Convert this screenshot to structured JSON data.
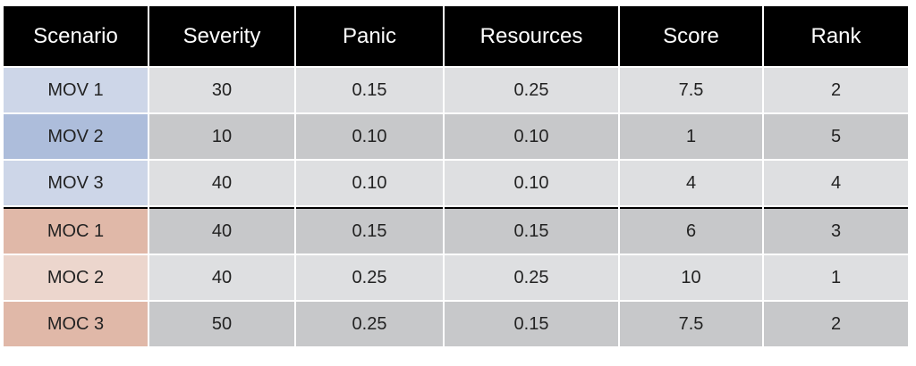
{
  "chart_data": {
    "type": "table",
    "columns": [
      "Scenario",
      "Severity",
      "Panic",
      "Resources",
      "Score",
      "Rank"
    ],
    "rows": [
      {
        "scenario": "MOV 1",
        "severity": "30",
        "panic": "0.15",
        "resources": "0.25",
        "score": "7.5",
        "rank": "2",
        "color": "#cdd6e8",
        "stripe": "light",
        "group_start": false
      },
      {
        "scenario": "MOV 2",
        "severity": "10",
        "panic": "0.10",
        "resources": "0.10",
        "score": "1",
        "rank": "5",
        "color": "#adbddb",
        "stripe": "dark",
        "group_start": false
      },
      {
        "scenario": "MOV 3",
        "severity": "40",
        "panic": "0.10",
        "resources": "0.10",
        "score": "4",
        "rank": "4",
        "color": "#cdd6e8",
        "stripe": "light",
        "group_start": false
      },
      {
        "scenario": "MOC 1",
        "severity": "40",
        "panic": "0.15",
        "resources": "0.15",
        "score": "6",
        "rank": "3",
        "color": "#e0b8a8",
        "stripe": "dark",
        "group_start": true
      },
      {
        "scenario": "MOC 2",
        "severity": "40",
        "panic": "0.25",
        "resources": "0.25",
        "score": "10",
        "rank": "1",
        "color": "#ecd6cd",
        "stripe": "light",
        "group_start": false
      },
      {
        "scenario": "MOC 3",
        "severity": "50",
        "panic": "0.25",
        "resources": "0.15",
        "score": "7.5",
        "rank": "2",
        "color": "#e0b8a8",
        "stripe": "dark",
        "group_start": false
      }
    ]
  },
  "colors": {
    "header_bg": "#000000",
    "header_text": "#ffffff",
    "row_light": "#dedfe1",
    "row_dark": "#c7c8ca",
    "divider": "#000000"
  }
}
